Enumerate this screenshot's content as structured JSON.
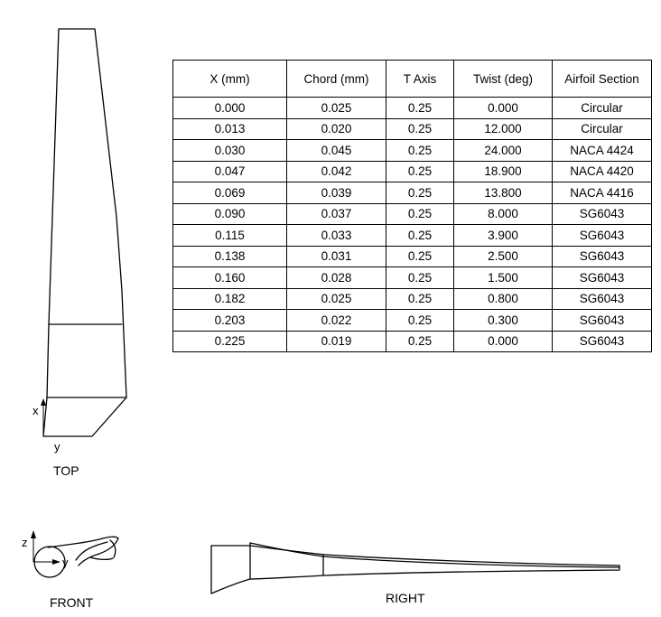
{
  "table": {
    "headers": [
      "X (mm)",
      "Chord (mm)",
      "T Axis",
      "Twist (deg)",
      "Airfoil Section"
    ],
    "rows": [
      [
        "0.000",
        "0.025",
        "0.25",
        "0.000",
        "Circular"
      ],
      [
        "0.013",
        "0.020",
        "0.25",
        "12.000",
        "Circular"
      ],
      [
        "0.030",
        "0.045",
        "0.25",
        "24.000",
        "NACA 4424"
      ],
      [
        "0.047",
        "0.042",
        "0.25",
        "18.900",
        "NACA 4420"
      ],
      [
        "0.069",
        "0.039",
        "0.25",
        "13.800",
        "NACA 4416"
      ],
      [
        "0.090",
        "0.037",
        "0.25",
        "8.000",
        "SG6043"
      ],
      [
        "0.115",
        "0.033",
        "0.25",
        "3.900",
        "SG6043"
      ],
      [
        "0.138",
        "0.031",
        "0.25",
        "2.500",
        "SG6043"
      ],
      [
        "0.160",
        "0.028",
        "0.25",
        "1.500",
        "SG6043"
      ],
      [
        "0.182",
        "0.025",
        "0.25",
        "0.800",
        "SG6043"
      ],
      [
        "0.203",
        "0.022",
        "0.25",
        "0.300",
        "SG6043"
      ],
      [
        "0.225",
        "0.019",
        "0.25",
        "0.000",
        "SG6043"
      ]
    ]
  },
  "views": {
    "top": {
      "label": "TOP",
      "axis_x": "x",
      "axis_y": "y"
    },
    "front": {
      "label": "FRONT",
      "axis_z": "z",
      "axis_y": "y"
    },
    "right": {
      "label": "RIGHT"
    }
  }
}
